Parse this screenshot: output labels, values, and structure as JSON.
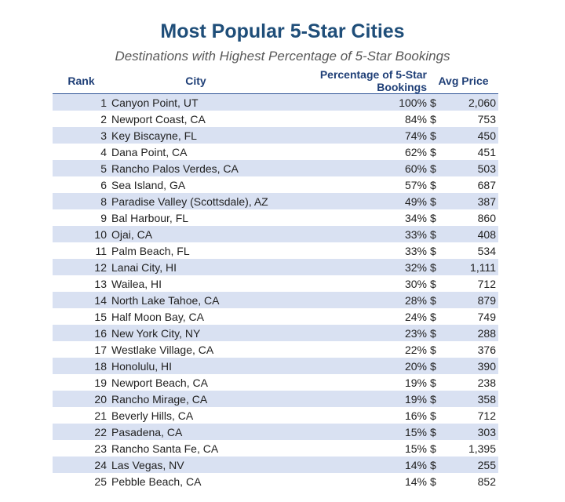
{
  "title": "Most Popular 5-Star Cities",
  "subtitle": "Destinations with Highest Percentage of 5-Star Bookings",
  "headers": {
    "rank": "Rank",
    "city": "City",
    "percentage": "Percentage  of 5-Star Bookings",
    "price": "Avg Price"
  },
  "rows": [
    {
      "rank": "1",
      "city": "Canyon Point, UT",
      "pct": "100%",
      "cur": "$",
      "price": "2,060"
    },
    {
      "rank": "2",
      "city": "Newport Coast, CA",
      "pct": "84%",
      "cur": "$",
      "price": "753"
    },
    {
      "rank": "3",
      "city": "Key Biscayne, FL",
      "pct": "74%",
      "cur": "$",
      "price": "450"
    },
    {
      "rank": "4",
      "city": "Dana Point, CA",
      "pct": "62%",
      "cur": "$",
      "price": "451"
    },
    {
      "rank": "5",
      "city": "Rancho Palos Verdes, CA",
      "pct": "60%",
      "cur": "$",
      "price": "503"
    },
    {
      "rank": "6",
      "city": "Sea Island, GA",
      "pct": "57%",
      "cur": "$",
      "price": "687"
    },
    {
      "rank": "8",
      "city": "Paradise Valley (Scottsdale), AZ",
      "pct": "49%",
      "cur": "$",
      "price": "387"
    },
    {
      "rank": "9",
      "city": "Bal Harbour, FL",
      "pct": "34%",
      "cur": "$",
      "price": "860"
    },
    {
      "rank": "10",
      "city": "Ojai, CA",
      "pct": "33%",
      "cur": "$",
      "price": "408"
    },
    {
      "rank": "11",
      "city": "Palm Beach, FL",
      "pct": "33%",
      "cur": "$",
      "price": "534"
    },
    {
      "rank": "12",
      "city": "Lanai City, HI",
      "pct": "32%",
      "cur": "$",
      "price": "1,111"
    },
    {
      "rank": "13",
      "city": "Wailea, HI",
      "pct": "30%",
      "cur": "$",
      "price": "712"
    },
    {
      "rank": "14",
      "city": "North Lake Tahoe, CA",
      "pct": "28%",
      "cur": "$",
      "price": "879"
    },
    {
      "rank": "15",
      "city": "Half Moon Bay, CA",
      "pct": "24%",
      "cur": "$",
      "price": "749"
    },
    {
      "rank": "16",
      "city": "New York City, NY",
      "pct": "23%",
      "cur": "$",
      "price": "288"
    },
    {
      "rank": "17",
      "city": "Westlake Village, CA",
      "pct": "22%",
      "cur": "$",
      "price": "376"
    },
    {
      "rank": "18",
      "city": "Honolulu, HI",
      "pct": "20%",
      "cur": "$",
      "price": "390"
    },
    {
      "rank": "19",
      "city": "Newport Beach, CA",
      "pct": "19%",
      "cur": "$",
      "price": "238"
    },
    {
      "rank": "20",
      "city": "Rancho Mirage, CA",
      "pct": "19%",
      "cur": "$",
      "price": "358"
    },
    {
      "rank": "21",
      "city": "Beverly Hills, CA",
      "pct": "16%",
      "cur": "$",
      "price": "712"
    },
    {
      "rank": "22",
      "city": "Pasadena, CA",
      "pct": "15%",
      "cur": "$",
      "price": "303"
    },
    {
      "rank": "23",
      "city": "Rancho Santa Fe, CA",
      "pct": "15%",
      "cur": "$",
      "price": "1,395"
    },
    {
      "rank": "24",
      "city": "Las Vegas, NV",
      "pct": "14%",
      "cur": "$",
      "price": "255"
    },
    {
      "rank": "25",
      "city": "Pebble Beach, CA",
      "pct": "14%",
      "cur": "$",
      "price": "852"
    }
  ],
  "colors": {
    "title": "#1f4e79",
    "header_text": "#1f3f77",
    "band": "#d9e1f2"
  }
}
